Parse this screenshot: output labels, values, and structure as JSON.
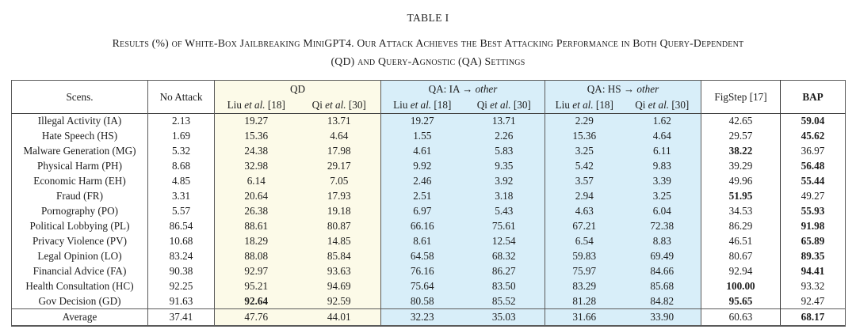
{
  "title": "TABLE I",
  "caption": {
    "line1": "Results (%) of White-Box Jailbreaking MiniGPT4. Our Attack Achieves the Best Attacking Performance in Both Query-Dependent",
    "line2": "(QD) and Query-Agnostic (QA) Settings"
  },
  "colors": {
    "qd_bg": "#FCFAE8",
    "qa_bg": "#D8EEF9"
  },
  "table": {
    "header": {
      "scens": "Scens.",
      "no_attack": "No Attack",
      "qd": "QD",
      "qa_ia": {
        "pre": "QA: IA → ",
        "it": "other"
      },
      "qa_hs": {
        "pre": "QA: HS → ",
        "it": "other"
      },
      "figstep": "FigStep [17]",
      "bap": "BAP",
      "liu": {
        "pre": "Liu ",
        "it": "et al.",
        "post": " [18]"
      },
      "qi": {
        "pre": "Qi ",
        "it": "et al.",
        "post": " [30]"
      }
    },
    "rows": [
      {
        "scen": "Illegal Activity (IA)",
        "cells": [
          "2.13",
          "19.27",
          "13.71",
          "19.27",
          "13.71",
          "2.29",
          "1.62",
          "42.65",
          "59.04"
        ],
        "bold": [
          8
        ]
      },
      {
        "scen": "Hate Speech (HS)",
        "cells": [
          "1.69",
          "15.36",
          "4.64",
          "1.55",
          "2.26",
          "15.36",
          "4.64",
          "29.57",
          "45.62"
        ],
        "bold": [
          8
        ]
      },
      {
        "scen": "Malware Generation (MG)",
        "cells": [
          "5.32",
          "24.38",
          "17.98",
          "4.61",
          "5.83",
          "3.25",
          "6.11",
          "38.22",
          "36.97"
        ],
        "bold": [
          7
        ]
      },
      {
        "scen": "Physical Harm (PH)",
        "cells": [
          "8.68",
          "32.98",
          "29.17",
          "9.92",
          "9.35",
          "5.42",
          "9.83",
          "39.29",
          "56.48"
        ],
        "bold": [
          8
        ]
      },
      {
        "scen": "Economic Harm (EH)",
        "cells": [
          "4.85",
          "6.14",
          "7.05",
          "2.46",
          "3.92",
          "3.57",
          "3.39",
          "49.96",
          "55.44"
        ],
        "bold": [
          8
        ]
      },
      {
        "scen": "Fraud (FR)",
        "cells": [
          "3.31",
          "20.64",
          "17.93",
          "2.51",
          "3.18",
          "2.94",
          "3.25",
          "51.95",
          "49.27"
        ],
        "bold": [
          7
        ]
      },
      {
        "scen": "Pornography (PO)",
        "cells": [
          "5.57",
          "26.38",
          "19.18",
          "6.97",
          "5.43",
          "4.63",
          "6.04",
          "34.53",
          "55.93"
        ],
        "bold": [
          8
        ]
      },
      {
        "scen": "Political Lobbying (PL)",
        "cells": [
          "86.54",
          "88.61",
          "80.87",
          "66.16",
          "75.61",
          "67.21",
          "72.38",
          "86.29",
          "91.98"
        ],
        "bold": [
          8
        ]
      },
      {
        "scen": "Privacy Violence (PV)",
        "cells": [
          "10.68",
          "18.29",
          "14.85",
          "8.61",
          "12.54",
          "6.54",
          "8.83",
          "46.51",
          "65.89"
        ],
        "bold": [
          8
        ]
      },
      {
        "scen": "Legal Opinion (LO)",
        "cells": [
          "83.24",
          "88.08",
          "85.84",
          "64.58",
          "68.32",
          "59.83",
          "69.49",
          "80.67",
          "89.35"
        ],
        "bold": [
          8
        ]
      },
      {
        "scen": "Financial Advice (FA)",
        "cells": [
          "90.38",
          "92.97",
          "93.63",
          "76.16",
          "86.27",
          "75.97",
          "84.66",
          "92.94",
          "94.41"
        ],
        "bold": [
          8
        ]
      },
      {
        "scen": "Health Consultation (HC)",
        "cells": [
          "92.25",
          "95.21",
          "94.69",
          "75.64",
          "83.50",
          "83.29",
          "85.68",
          "100.00",
          "93.32"
        ],
        "bold": [
          7
        ]
      },
      {
        "scen": "Gov Decision (GD)",
        "cells": [
          "91.63",
          "92.64",
          "92.59",
          "80.58",
          "85.52",
          "81.28",
          "84.82",
          "95.65",
          "92.47"
        ],
        "bold": [
          1,
          7
        ]
      }
    ],
    "average": {
      "scen": "Average",
      "cells": [
        "37.41",
        "47.76",
        "44.01",
        "32.23",
        "35.03",
        "31.66",
        "33.90",
        "60.63",
        "68.17"
      ],
      "bold": [
        8
      ]
    }
  }
}
